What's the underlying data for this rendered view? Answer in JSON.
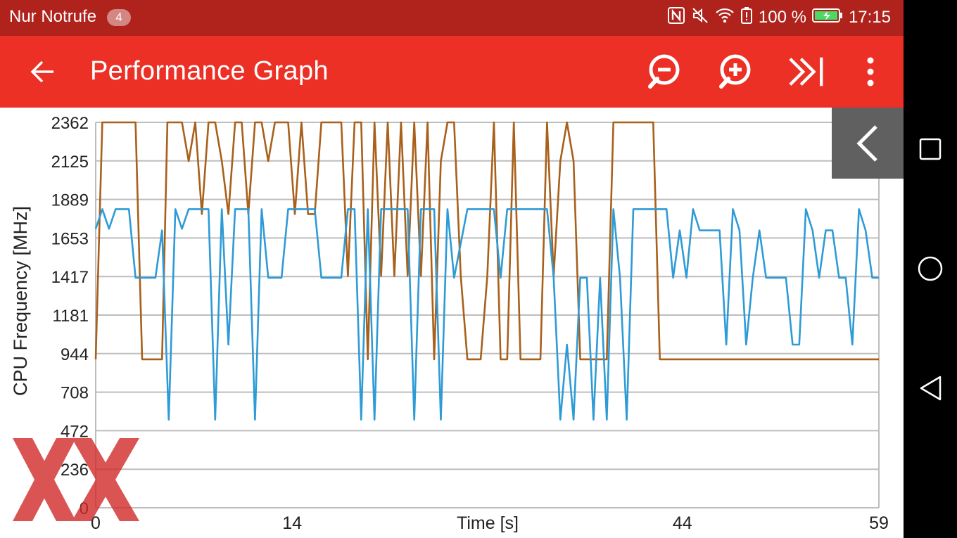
{
  "status_bar": {
    "carrier": "Nur Notrufe",
    "notification_count": "4",
    "battery": "100 %",
    "time": "17:15"
  },
  "app_bar": {
    "title": "Performance Graph",
    "icons": [
      "back-arrow-icon",
      "zoom-out-icon",
      "zoom-in-icon",
      "skip-to-end-icon",
      "more-vert-icon"
    ]
  },
  "colors": {
    "status_bar": "#af231c",
    "app_bar": "#ec3026",
    "series_orange": "#a8601a",
    "series_blue": "#2e9bd6",
    "grid": "#bdbdbd",
    "side_panel": "#606060",
    "watermark": "#d22a2a"
  },
  "chart_data": {
    "type": "line",
    "title": "",
    "xlabel": "Time [s]",
    "ylabel": "CPU Frequency [MHz]",
    "x_ticks": [
      "0",
      "14",
      "44",
      "59"
    ],
    "x_tick_values": [
      0,
      14.8,
      44.2,
      59
    ],
    "y_ticks": [
      "0",
      "236",
      "472",
      "708",
      "944",
      "1181",
      "1417",
      "1653",
      "1889",
      "2125",
      "2362"
    ],
    "xlim": [
      0,
      59
    ],
    "ylim": [
      0,
      2362
    ],
    "grid": true,
    "legend": "none",
    "series": [
      {
        "color": "#a8601a",
        "points": [
          [
            0,
            910
          ],
          [
            0.5,
            2362
          ],
          [
            1,
            2362
          ],
          [
            3,
            2362
          ],
          [
            3.5,
            910
          ],
          [
            5,
            910
          ],
          [
            5.4,
            2362
          ],
          [
            6.5,
            2362
          ],
          [
            7,
            2125
          ],
          [
            7.5,
            2362
          ],
          [
            8,
            1800
          ],
          [
            8.5,
            2362
          ],
          [
            9,
            2362
          ],
          [
            9.5,
            2125
          ],
          [
            10,
            1800
          ],
          [
            10.5,
            2362
          ],
          [
            11,
            2362
          ],
          [
            11.5,
            1800
          ],
          [
            12,
            2362
          ],
          [
            12.5,
            2362
          ],
          [
            13,
            2125
          ],
          [
            13.5,
            2362
          ],
          [
            14.5,
            2362
          ],
          [
            15,
            1800
          ],
          [
            15.5,
            2362
          ],
          [
            16,
            1800
          ],
          [
            16.5,
            1800
          ],
          [
            17,
            2362
          ],
          [
            18.5,
            2362
          ],
          [
            19,
            1420
          ],
          [
            19.5,
            2362
          ],
          [
            20,
            2362
          ],
          [
            20.5,
            910
          ],
          [
            21,
            2362
          ],
          [
            21.5,
            1420
          ],
          [
            22,
            2362
          ],
          [
            22.5,
            1420
          ],
          [
            23,
            2362
          ],
          [
            23.5,
            1420
          ],
          [
            24,
            2362
          ],
          [
            24.5,
            1420
          ],
          [
            25,
            2362
          ],
          [
            25.5,
            910
          ],
          [
            26,
            2125
          ],
          [
            26.5,
            2362
          ],
          [
            27,
            2362
          ],
          [
            27.5,
            1420
          ],
          [
            28,
            910
          ],
          [
            29,
            910
          ],
          [
            29.5,
            1420
          ],
          [
            30,
            2362
          ],
          [
            30.5,
            910
          ],
          [
            31,
            910
          ],
          [
            31.5,
            2362
          ],
          [
            32,
            910
          ],
          [
            33.5,
            910
          ],
          [
            34,
            2362
          ],
          [
            34.5,
            1420
          ],
          [
            35,
            2125
          ],
          [
            35.5,
            2362
          ],
          [
            36,
            2125
          ],
          [
            36.5,
            910
          ],
          [
            37.5,
            910
          ],
          [
            38.5,
            910
          ],
          [
            39,
            2362
          ],
          [
            40,
            2362
          ],
          [
            42,
            2362
          ],
          [
            42.5,
            910
          ],
          [
            59,
            910
          ]
        ]
      },
      {
        "color": "#2e9bd6",
        "points": [
          [
            0,
            1710
          ],
          [
            0.5,
            1830
          ],
          [
            1,
            1710
          ],
          [
            1.5,
            1830
          ],
          [
            2.5,
            1830
          ],
          [
            3,
            1410
          ],
          [
            4.5,
            1410
          ],
          [
            5,
            1700
          ],
          [
            5.5,
            540
          ],
          [
            6,
            1830
          ],
          [
            6.5,
            1710
          ],
          [
            7,
            1830
          ],
          [
            8.5,
            1830
          ],
          [
            9,
            540
          ],
          [
            9.5,
            1830
          ],
          [
            10,
            1000
          ],
          [
            10.5,
            1830
          ],
          [
            11.5,
            1830
          ],
          [
            12,
            540
          ],
          [
            12.5,
            1830
          ],
          [
            13,
            1410
          ],
          [
            14,
            1410
          ],
          [
            14.5,
            1830
          ],
          [
            16.5,
            1830
          ],
          [
            17,
            1410
          ],
          [
            18.5,
            1410
          ],
          [
            19,
            1830
          ],
          [
            19.5,
            1830
          ],
          [
            20,
            540
          ],
          [
            20.5,
            1830
          ],
          [
            21,
            540
          ],
          [
            21.5,
            1830
          ],
          [
            23.5,
            1830
          ],
          [
            24,
            540
          ],
          [
            24.5,
            1830
          ],
          [
            25.5,
            1830
          ],
          [
            26,
            540
          ],
          [
            26.5,
            1830
          ],
          [
            27,
            1410
          ],
          [
            28,
            1830
          ],
          [
            30,
            1830
          ],
          [
            30.5,
            1410
          ],
          [
            31,
            1830
          ],
          [
            33,
            1830
          ],
          [
            34,
            1830
          ],
          [
            34.5,
            1410
          ],
          [
            35,
            540
          ],
          [
            35.5,
            1000
          ],
          [
            36,
            540
          ],
          [
            36.5,
            1410
          ],
          [
            37,
            1410
          ],
          [
            37.5,
            540
          ],
          [
            38,
            1410
          ],
          [
            38.5,
            540
          ],
          [
            39,
            1830
          ],
          [
            39.5,
            1410
          ],
          [
            40,
            540
          ],
          [
            40.5,
            1830
          ],
          [
            43,
            1830
          ],
          [
            43.5,
            1410
          ],
          [
            44,
            1700
          ],
          [
            44.5,
            1410
          ],
          [
            45,
            1830
          ],
          [
            45.5,
            1700
          ],
          [
            47,
            1700
          ],
          [
            47.5,
            1000
          ],
          [
            48,
            1830
          ],
          [
            48.5,
            1700
          ],
          [
            49,
            1000
          ],
          [
            49.5,
            1410
          ],
          [
            50,
            1700
          ],
          [
            50.5,
            1410
          ],
          [
            52,
            1410
          ],
          [
            52.5,
            1000
          ],
          [
            53,
            1000
          ],
          [
            53.5,
            1830
          ],
          [
            54,
            1700
          ],
          [
            54.5,
            1410
          ],
          [
            55,
            1700
          ],
          [
            55.5,
            1700
          ],
          [
            56,
            1410
          ],
          [
            56.5,
            1410
          ],
          [
            57,
            1000
          ],
          [
            57.5,
            1830
          ],
          [
            58,
            1700
          ],
          [
            58.5,
            1410
          ],
          [
            59,
            1410
          ]
        ]
      }
    ]
  }
}
